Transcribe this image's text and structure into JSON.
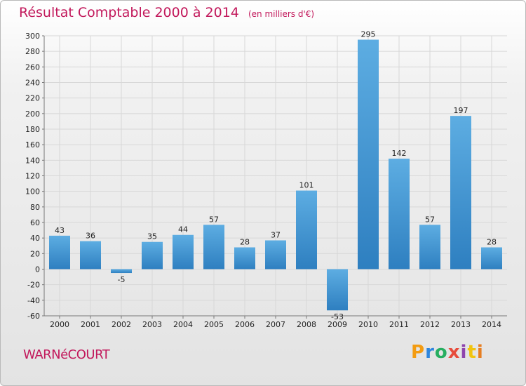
{
  "title": "Résultat Comptable 2000 à 2014",
  "subtitle": "(en milliers d'€)",
  "commune": "WARNéCOURT",
  "brand": {
    "letters": [
      "P",
      "r",
      "o",
      "x",
      "i",
      "t",
      "i"
    ],
    "colors": [
      "#f39c12",
      "#2e86de",
      "#27ae60",
      "#e74c3c",
      "#8e44ad",
      "#f1c40f",
      "#e67e22"
    ]
  },
  "colors": {
    "bar_top": "#5dade2",
    "bar_bottom": "#2e7fc0",
    "title": "#c2185b",
    "grid": "#d7d7d7",
    "axis": "#777777",
    "text": "#222222"
  },
  "chart_data": {
    "type": "bar",
    "title": "Résultat Comptable 2000 à 2014",
    "ylabel": "(en milliers d'€)",
    "xlabel": "",
    "categories": [
      "2000",
      "2001",
      "2002",
      "2003",
      "2004",
      "2005",
      "2006",
      "2007",
      "2008",
      "2009",
      "2010",
      "2011",
      "2012",
      "2013",
      "2014"
    ],
    "values": [
      43,
      36,
      -5,
      35,
      44,
      57,
      28,
      37,
      101,
      -53,
      295,
      142,
      57,
      197,
      28
    ],
    "ylim": [
      -60,
      300
    ],
    "yticks": [
      -60,
      -40,
      -20,
      0,
      20,
      40,
      60,
      80,
      100,
      120,
      140,
      160,
      180,
      200,
      220,
      240,
      260,
      280,
      300
    ],
    "grid": true
  }
}
